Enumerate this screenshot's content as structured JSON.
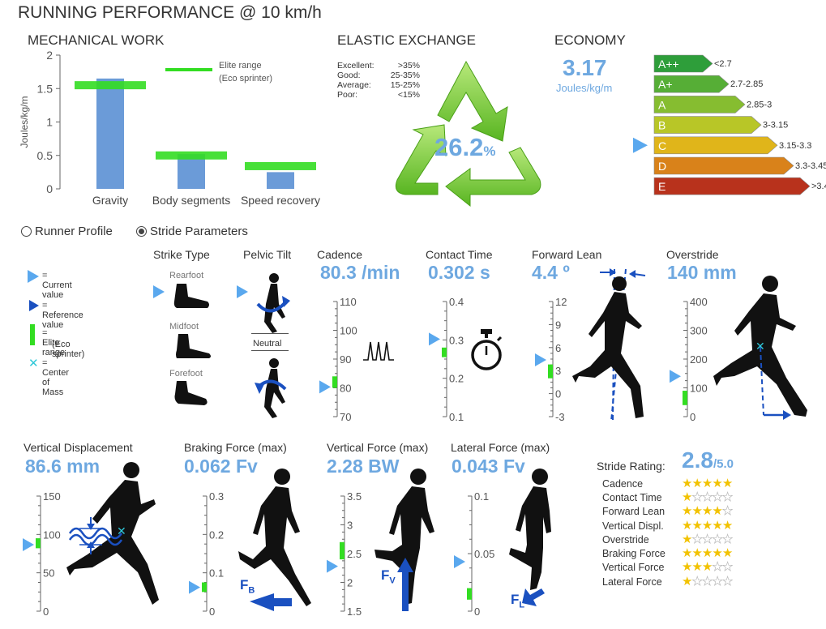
{
  "page": {
    "title": "RUNNING PERFORMANCE @ 10 km/h"
  },
  "mechanical_work": {
    "title": "MECHANICAL WORK",
    "legend": "Elite range",
    "legend_sub": "(Eco sprinter)",
    "chart_data": {
      "type": "bar",
      "title": "MECHANICAL WORK",
      "categories": [
        "Gravity",
        "Body segments",
        "Speed recovery"
      ],
      "values": [
        1.65,
        0.52,
        0.25
      ],
      "elite_range": [
        1.55,
        0.5,
        0.34
      ],
      "ylabel": "Joules/kg/m",
      "ylim": [
        0,
        2
      ],
      "yticks": [
        "0",
        "0.5",
        "1",
        "1.5",
        "2"
      ],
      "colors": {
        "bar": "#6b9bd8",
        "elite": "#33dd22"
      }
    }
  },
  "elastic": {
    "title": "ELASTIC EXCHANGE",
    "value": "26.2",
    "unit": "%",
    "scale": [
      {
        "label": "Excellent:",
        "range": ">35%"
      },
      {
        "label": "Good:",
        "range": "25-35%"
      },
      {
        "label": "Average:",
        "range": "15-25%"
      },
      {
        "label": "Poor:",
        "range": "<15%"
      }
    ]
  },
  "economy": {
    "title": "ECONOMY",
    "value": "3.17",
    "unit": "Joules/kg/m",
    "current_class": "C",
    "classes": [
      {
        "label": "A++",
        "range": "<2.7",
        "color": "#2e9e3a"
      },
      {
        "label": "A+",
        "range": "2.7-2.85",
        "color": "#56ae36"
      },
      {
        "label": "A",
        "range": "2.85-3",
        "color": "#86bd30"
      },
      {
        "label": "B",
        "range": "3-3.15",
        "color": "#b8c627"
      },
      {
        "label": "C",
        "range": "3.15-3.3",
        "color": "#e0b51a"
      },
      {
        "label": "D",
        "range": "3.3-3.45",
        "color": "#d9821a"
      },
      {
        "label": "E",
        "range": ">3.45",
        "color": "#b8321c"
      }
    ]
  },
  "tabs": [
    {
      "label": "Runner Profile",
      "selected": false
    },
    {
      "label": "Stride Parameters",
      "selected": true
    }
  ],
  "legend": {
    "current": "= Current value",
    "reference": "= Reference value",
    "elite": "= Elite range",
    "elite_sub": "(Eco sprinter)",
    "com": "= Center of Mass"
  },
  "strike": {
    "title": "Strike Type",
    "options": [
      "Rearfoot",
      "Midfoot",
      "Forefoot"
    ],
    "current": "Rearfoot"
  },
  "pelvic": {
    "title": "Pelvic Tilt",
    "neutral": "Neutral"
  },
  "cadence": {
    "title": "Cadence",
    "value": "80.3 /min",
    "ticks": [
      "110",
      "100",
      "90",
      "80",
      "70"
    ],
    "range": [
      70,
      110
    ],
    "current": 80.3,
    "elite": [
      80,
      84
    ]
  },
  "contact": {
    "title": "Contact Time",
    "value": "0.302 s",
    "ticks": [
      "0.4",
      "0.3",
      "0.2",
      "0.1"
    ],
    "range": [
      0.1,
      0.4
    ],
    "current": 0.302,
    "elite": [
      0.255,
      0.28
    ]
  },
  "lean": {
    "title": "Forward Lean",
    "value": "4.4 º",
    "ticks": [
      "12",
      "9",
      "6",
      "3",
      "0",
      "-3"
    ],
    "range": [
      -3,
      12
    ],
    "current": 4.4,
    "elite": [
      2,
      3.8
    ]
  },
  "overstride": {
    "title": "Overstride",
    "value": "140 mm",
    "ticks": [
      "400",
      "300",
      "200",
      "100",
      "0"
    ],
    "range": [
      0,
      400
    ],
    "current": 140,
    "elite": [
      40,
      90
    ]
  },
  "vdisp": {
    "title": "Vertical Displacement",
    "value": "86.6 mm",
    "ticks": [
      "150",
      "100",
      "50",
      "0"
    ],
    "range": [
      0,
      150
    ],
    "current": 86.6,
    "elite": [
      82,
      95
    ]
  },
  "braking": {
    "title": "Braking Force (max)",
    "value": "0.062 Fv",
    "ticks": [
      "0.3",
      "0.2",
      "0.1",
      "0"
    ],
    "range": [
      0,
      0.3
    ],
    "current": 0.062,
    "elite": [
      0.05,
      0.075
    ],
    "arrow_label": "F",
    "arrow_sub": "B"
  },
  "vforce": {
    "title": "Vertical Force (max)",
    "value": "2.28 BW",
    "ticks": [
      "3.5",
      "3",
      "2.5",
      "2",
      "1.5"
    ],
    "range": [
      1.5,
      3.5
    ],
    "current": 2.28,
    "elite": [
      2.4,
      2.7
    ],
    "arrow_label": "F",
    "arrow_sub": "V"
  },
  "lforce": {
    "title": "Lateral Force (max)",
    "value": "0.043 Fv",
    "ticks": [
      "0.1",
      "0.05",
      "0"
    ],
    "range": [
      0,
      0.1
    ],
    "current": 0.043,
    "elite": [
      0.01,
      0.02
    ],
    "arrow_label": "F",
    "arrow_sub": "L"
  },
  "rating": {
    "label": "Stride Rating:",
    "value": "2.8",
    "max": "/5.0",
    "items": [
      {
        "name": "Cadence",
        "stars": 5
      },
      {
        "name": "Contact Time",
        "stars": 1
      },
      {
        "name": "Forward Lean",
        "stars": 4
      },
      {
        "name": "Vertical Displ.",
        "stars": 5
      },
      {
        "name": "Overstride",
        "stars": 1
      },
      {
        "name": "Braking Force",
        "stars": 5
      },
      {
        "name": "Vertical Force",
        "stars": 3
      },
      {
        "name": "Lateral Force",
        "stars": 1
      }
    ]
  }
}
